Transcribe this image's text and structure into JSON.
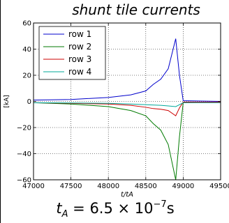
{
  "slide": {
    "title": "shunt tile currents",
    "caption_t": "t",
    "caption_sub": "A",
    "caption_eq": " = 6.5 × 10",
    "caption_exp": "−7",
    "caption_unit": "s"
  },
  "chart_data": {
    "type": "line",
    "title": "",
    "xlabel": "t/t_A",
    "ylabel": "[kA]",
    "xlim": [
      47000,
      49500
    ],
    "ylim": [
      -60,
      60
    ],
    "xticks": [
      47000,
      47500,
      48000,
      48500,
      49000,
      49500
    ],
    "yticks": [
      -60,
      -40,
      -20,
      0,
      20,
      40,
      60
    ],
    "xtick_labels": [
      "47000",
      "47500",
      "48000",
      "48500",
      "49000",
      "49500"
    ],
    "ytick_labels": [
      "−60",
      "−40",
      "−20",
      "0",
      "20",
      "40",
      "60"
    ],
    "grid": true,
    "legend_position": "top-left",
    "series": [
      {
        "name": "row 1",
        "color": "#0000cc",
        "x": [
          47000,
          47500,
          48000,
          48300,
          48500,
          48600,
          48700,
          48800,
          48900,
          48950,
          49000,
          49500
        ],
        "y": [
          1,
          1.5,
          3,
          5,
          8,
          13,
          17,
          25,
          48,
          20,
          0.5,
          0
        ]
      },
      {
        "name": "row 2",
        "color": "#007a00",
        "x": [
          47000,
          47500,
          48000,
          48300,
          48500,
          48600,
          48700,
          48800,
          48900,
          48950,
          49000,
          49500
        ],
        "y": [
          -1,
          -2,
          -4,
          -7,
          -11,
          -17,
          -22,
          -33,
          -60,
          -27,
          -1,
          -0.5
        ]
      },
      {
        "name": "row 3",
        "color": "#cc0000",
        "x": [
          47000,
          47500,
          48000,
          48300,
          48500,
          48600,
          48700,
          48800,
          48900,
          48950,
          49000,
          49500
        ],
        "y": [
          -1,
          -1.5,
          -2,
          -3,
          -4.5,
          -5.5,
          -6,
          -7,
          -11,
          -5,
          -0.5,
          -0.5
        ]
      },
      {
        "name": "row 4",
        "color": "#00a89a",
        "x": [
          47000,
          47500,
          48000,
          48300,
          48500,
          48700,
          48800,
          48900,
          49000,
          49500
        ],
        "y": [
          -1,
          -1.2,
          -1.5,
          -2,
          -2.5,
          -3,
          -3.5,
          -4,
          -1,
          -1
        ]
      }
    ]
  }
}
